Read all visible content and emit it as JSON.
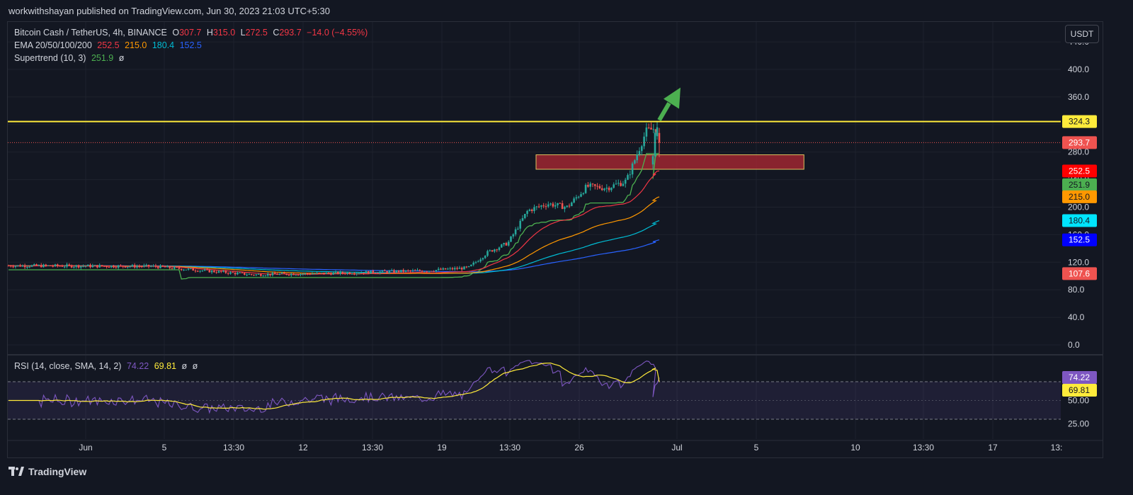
{
  "header": {
    "published": "workwithshayan published on TradingView.com, Jun 30, 2023 21:03 UTC+5:30"
  },
  "currency_button": "USDT",
  "legend": {
    "symbol": "Bitcoin Cash / TetherUS, 4h, BINANCE",
    "o_label": "O",
    "o_value": "307.7",
    "h_label": "H",
    "h_value": "315.0",
    "l_label": "L",
    "l_value": "272.5",
    "c_label": "C",
    "c_value": "293.7",
    "change": "−14.0 (−4.55%)",
    "ema_label": "EMA 20/50/100/200",
    "ema20": "252.5",
    "ema50": "215.0",
    "ema100": "180.4",
    "ema200": "152.5",
    "supertrend_label": "Supertrend (10, 3)",
    "supertrend_value": "251.9",
    "supertrend_extra": "ø",
    "rsi_label": "RSI (14, close, SMA, 14, 2)",
    "rsi_value": "74.22",
    "rsi_sma": "69.81",
    "rsi_extra1": "ø",
    "rsi_extra2": "ø"
  },
  "footer": {
    "brand": "TradingView"
  },
  "colors": {
    "background": "#131722",
    "grid": "#1e222d",
    "text": "#d1d4dc",
    "up": "#26a69a",
    "down": "#ef5350",
    "ema20": "#f23645",
    "ema50": "#ff9800",
    "ema100": "#00bcd4",
    "ema200": "#2962ff",
    "supertrend": "#4caf50",
    "resistance": "#ffeb3b",
    "rsi": "#7e57c2",
    "rsi_sma": "#ffeb3b",
    "zone": "#b22833",
    "arrow": "#4caf50"
  },
  "chart_data": [
    {
      "type": "candlestick",
      "timeframe": "4h",
      "x_ticks": [
        "Jun",
        "5",
        "13:30",
        "12",
        "13:30",
        "19",
        "13:30",
        "26",
        "Jul",
        "5",
        "10",
        "13:30",
        "17",
        "13:"
      ],
      "y_ticks": [
        "440.0",
        "400.0",
        "360.0",
        "320.0",
        "280.0",
        "240.0",
        "200.0",
        "160.0",
        "120.0",
        "80.0",
        "40.0",
        "0.0"
      ],
      "ylim": [
        -5,
        440
      ],
      "price_labels": [
        {
          "label": "324.3",
          "value": 324.3,
          "kind": "resistance"
        },
        {
          "label": "293.7",
          "value": 293.7,
          "kind": "last_price"
        },
        {
          "label": "252.5",
          "value": 252.5,
          "kind": "ema20"
        },
        {
          "label": "251.9",
          "value": 251.9,
          "kind": "supertrend"
        },
        {
          "label": "215.0",
          "value": 215.0,
          "kind": "ema50"
        },
        {
          "label": "180.4",
          "value": 180.4,
          "kind": "ema100"
        },
        {
          "label": "152.5",
          "value": 152.5,
          "kind": "ema200"
        },
        {
          "label": "107.6",
          "value": 107.6,
          "kind": "marker"
        }
      ],
      "resistance_level": 324.3,
      "last_price": 293.7,
      "demand_zone": {
        "top": 276,
        "bottom": 255,
        "start_date": "2023-06-26",
        "end_date": "2023-07-08"
      },
      "price_path": [
        [
          "2023-05-29",
          115
        ],
        [
          "2023-06-05",
          114
        ],
        [
          "2023-06-10",
          102
        ],
        [
          "2023-06-14",
          104
        ],
        [
          "2023-06-19",
          108
        ],
        [
          "2023-06-21",
          112
        ],
        [
          "2023-06-22",
          135
        ],
        [
          "2023-06-23",
          148
        ],
        [
          "2023-06-24",
          195
        ],
        [
          "2023-06-25",
          205
        ],
        [
          "2023-06-26",
          200
        ],
        [
          "2023-06-27",
          230
        ],
        [
          "2023-06-28",
          228
        ],
        [
          "2023-06-29",
          238
        ],
        [
          "2023-06-30",
          310
        ],
        [
          "2023-06-30T12",
          315
        ],
        [
          "2023-06-30T16",
          293.7
        ]
      ],
      "ema_end_values": {
        "ema20": 252.5,
        "ema50": 215.0,
        "ema100": 180.4,
        "ema200": 152.5
      },
      "supertrend_value": 251.9
    },
    {
      "type": "line",
      "name": "RSI",
      "ylim": [
        15,
        95
      ],
      "y_ticks": [
        "75.00",
        "50.00",
        "25.00"
      ],
      "levels": [
        70,
        30
      ],
      "value_labels": [
        {
          "label": "74.22",
          "value": 74.22
        },
        {
          "label": "69.81",
          "value": 69.81
        }
      ],
      "last_rsi": 74.22,
      "last_sma": 69.81
    }
  ]
}
